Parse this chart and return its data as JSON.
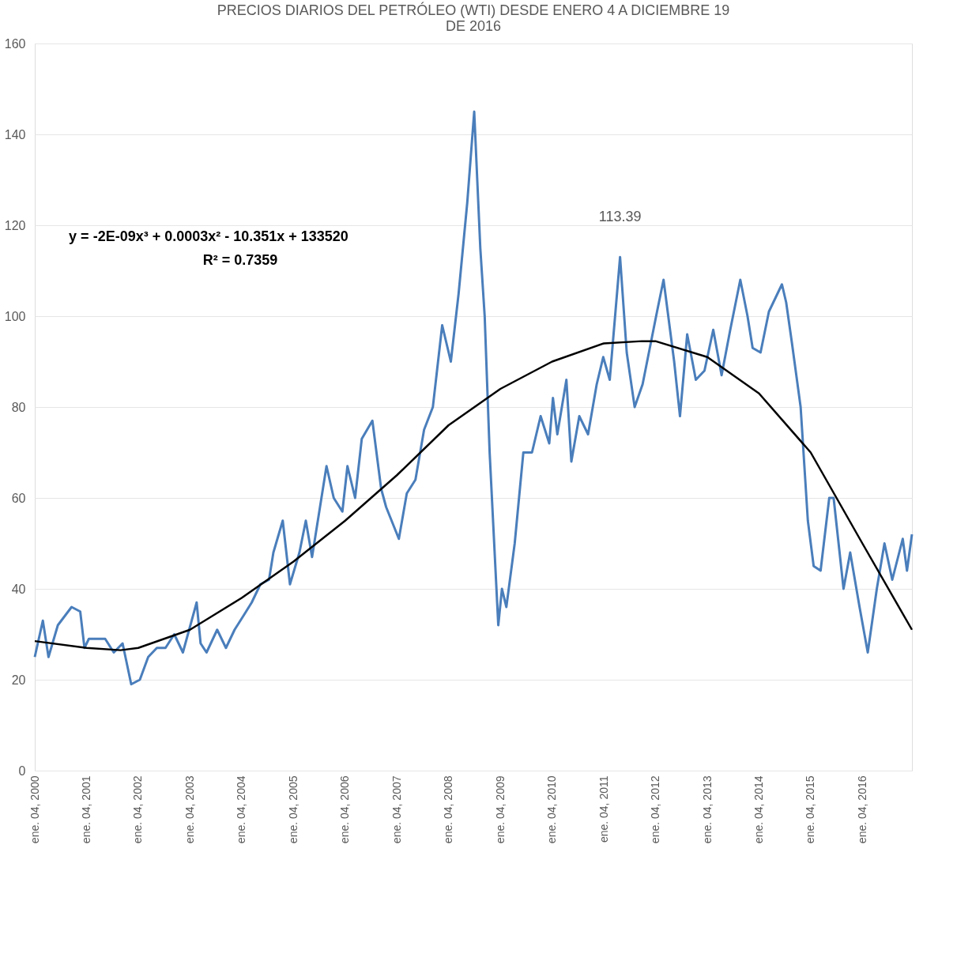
{
  "chart_data": {
    "type": "line",
    "title": "PRECIOS  DIARIOS DEL PETRÓLEO (WTI) DESDE ENERO 4 A DICIEMBRE 19\nDE 2016",
    "xlim": [
      "2000-01-04",
      "2016-12-19"
    ],
    "xticks": [
      {
        "value": "2000-01-04",
        "label": "ene. 04, 2000"
      },
      {
        "value": "2001-01-04",
        "label": "ene. 04, 2001"
      },
      {
        "value": "2002-01-04",
        "label": "ene. 04, 2002"
      },
      {
        "value": "2003-01-04",
        "label": "ene. 04, 2003"
      },
      {
        "value": "2004-01-04",
        "label": "ene. 04, 2004"
      },
      {
        "value": "2005-01-04",
        "label": "ene. 04, 2005"
      },
      {
        "value": "2006-01-04",
        "label": "ene. 04, 2006"
      },
      {
        "value": "2007-01-04",
        "label": "ene. 04, 2007"
      },
      {
        "value": "2008-01-04",
        "label": "ene. 04, 2008"
      },
      {
        "value": "2009-01-04",
        "label": "ene. 04, 2009"
      },
      {
        "value": "2010-01-04",
        "label": "ene. 04, 2010"
      },
      {
        "value": "2011-01-04",
        "label": "ene. 04, 2011"
      },
      {
        "value": "2012-01-04",
        "label": "ene. 04, 2012"
      },
      {
        "value": "2013-01-04",
        "label": "ene. 04, 2013"
      },
      {
        "value": "2014-01-04",
        "label": "ene. 04, 2014"
      },
      {
        "value": "2015-01-04",
        "label": "ene. 04, 2015"
      },
      {
        "value": "2016-01-04",
        "label": "ene. 04, 2016"
      }
    ],
    "ylim": [
      0,
      160
    ],
    "yticks": [
      0,
      20,
      40,
      60,
      80,
      100,
      120,
      140,
      160
    ],
    "grid": "y",
    "series": [
      {
        "type": "line",
        "color": "#4a7ebb",
        "x": [
          "2000-01-04",
          "2000-03-01",
          "2000-04-10",
          "2000-06-15",
          "2000-09-20",
          "2000-11-20",
          "2000-12-20",
          "2001-01-20",
          "2001-05-15",
          "2001-07-15",
          "2001-09-15",
          "2001-11-15",
          "2002-01-15",
          "2002-03-15",
          "2002-05-15",
          "2002-07-15",
          "2002-09-15",
          "2002-11-15",
          "2003-02-20",
          "2003-03-20",
          "2003-05-01",
          "2003-07-15",
          "2003-09-15",
          "2003-11-15",
          "2004-01-15",
          "2004-03-15",
          "2004-05-15",
          "2004-07-15",
          "2004-08-15",
          "2004-10-20",
          "2004-12-10",
          "2005-02-15",
          "2005-04-01",
          "2005-05-15",
          "2005-08-25",
          "2005-10-15",
          "2005-12-15",
          "2006-01-20",
          "2006-03-15",
          "2006-05-01",
          "2006-07-15",
          "2006-09-15",
          "2006-10-20",
          "2007-01-18",
          "2007-03-15",
          "2007-05-15",
          "2007-07-15",
          "2007-09-15",
          "2007-11-20",
          "2008-01-20",
          "2008-03-15",
          "2008-05-15",
          "2008-07-03",
          "2008-08-15",
          "2008-09-15",
          "2008-10-20",
          "2008-12-20",
          "2009-01-15",
          "2009-02-15",
          "2009-04-15",
          "2009-06-15",
          "2009-08-15",
          "2009-10-15",
          "2009-12-15",
          "2010-01-10",
          "2010-02-10",
          "2010-04-15",
          "2010-05-20",
          "2010-07-15",
          "2010-09-15",
          "2010-11-15",
          "2010-12-31",
          "2011-02-15",
          "2011-04-29",
          "2011-06-15",
          "2011-08-10",
          "2011-10-05",
          "2012-01-15",
          "2012-03-01",
          "2012-05-15",
          "2012-06-25",
          "2012-08-15",
          "2012-10-15",
          "2012-12-15",
          "2013-02-15",
          "2013-04-15",
          "2013-06-15",
          "2013-08-25",
          "2013-10-15",
          "2013-11-20",
          "2014-01-15",
          "2014-03-15",
          "2014-06-15",
          "2014-07-15",
          "2014-08-25",
          "2014-10-25",
          "2014-12-15",
          "2015-01-25",
          "2015-03-15",
          "2015-05-15",
          "2015-06-15",
          "2015-08-24",
          "2015-10-10",
          "2015-12-15",
          "2016-02-11",
          "2016-04-15",
          "2016-06-08",
          "2016-08-02",
          "2016-10-15",
          "2016-11-14",
          "2016-12-19"
        ],
        "values": [
          25,
          33,
          25,
          32,
          36,
          35,
          27,
          29,
          29,
          26,
          28,
          19,
          20,
          25,
          27,
          27,
          30,
          26,
          37,
          28,
          26,
          31,
          27,
          31,
          34,
          37,
          41,
          42,
          48,
          55,
          41,
          48,
          55,
          47,
          67,
          60,
          57,
          67,
          60,
          73,
          77,
          62,
          58,
          51,
          61,
          64,
          75,
          80,
          98,
          90,
          105,
          125,
          145,
          115,
          100,
          70,
          32,
          40,
          36,
          50,
          70,
          70,
          78,
          72,
          82,
          74,
          86,
          68,
          78,
          74,
          85,
          91,
          86,
          113,
          92,
          80,
          85,
          101,
          108,
          90,
          78,
          96,
          86,
          88,
          97,
          87,
          97,
          108,
          100,
          93,
          92,
          101,
          107,
          103,
          94,
          80,
          55,
          45,
          44,
          60,
          60,
          40,
          48,
          36,
          26,
          40,
          50,
          42,
          51,
          44,
          52
        ]
      },
      {
        "type": "line",
        "color": "#000000",
        "x": [
          "2000-01-04",
          "2001-01-04",
          "2001-09-01",
          "2002-01-04",
          "2003-01-04",
          "2004-01-04",
          "2005-01-04",
          "2006-01-04",
          "2007-01-04",
          "2008-01-04",
          "2009-01-04",
          "2010-01-04",
          "2011-01-04",
          "2011-10-01",
          "2012-01-04",
          "2013-01-04",
          "2014-01-04",
          "2015-01-04",
          "2016-01-04",
          "2016-12-19"
        ],
        "values": [
          28.5,
          27,
          26.5,
          27,
          31,
          38,
          46,
          55,
          65,
          76,
          84,
          90,
          94,
          94.5,
          94.5,
          91,
          83,
          70,
          50,
          31
        ]
      }
    ],
    "annotations": [
      "y = -2E-09x³ + 0.0003x² - 10.351x + 133520",
      "R² = 0.7359",
      {
        "text": "113.39",
        "x": "2011-04-29",
        "y": 113.39
      }
    ]
  }
}
